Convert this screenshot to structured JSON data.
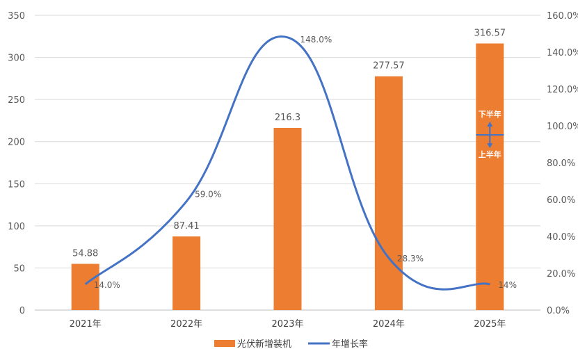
{
  "chart_data": {
    "type": "bar",
    "categories": [
      "2021年",
      "2022年",
      "2023年",
      "2024年",
      "2025年"
    ],
    "series": [
      {
        "name": "光伏新增装机",
        "type": "bar",
        "axis": "left",
        "values": [
          54.88,
          87.41,
          216.3,
          277.57,
          316.57
        ],
        "labels": [
          "54.88",
          "87.41",
          "216.3",
          "277.57",
          "316.57"
        ]
      },
      {
        "name": "年增长率",
        "type": "line",
        "axis": "right",
        "values": [
          14.0,
          59.0,
          148.0,
          28.3,
          14.0
        ],
        "labels": [
          "14.0%",
          "59.0%",
          "148.0%",
          "28.3%",
          "14%"
        ]
      }
    ],
    "left_axis": {
      "ylim": [
        0,
        350
      ],
      "ticks": [
        "0",
        "50",
        "100",
        "150",
        "200",
        "250",
        "300",
        "350"
      ]
    },
    "right_axis": {
      "ylim": [
        0,
        160
      ],
      "ticks": [
        "0.0%",
        "20.0%",
        "40.0%",
        "60.0%",
        "80.0%",
        "100.0%",
        "120.0%",
        "140.0%",
        "160.0%"
      ]
    },
    "annotations": {
      "upper": "下半年",
      "lower": "上半年",
      "bar_index": 4,
      "split_value": 208
    },
    "grid": true,
    "legend_position": "bottom",
    "colors": {
      "bar": "#ED7D31",
      "line": "#4472C4",
      "grid": "#D9D9D9"
    }
  }
}
